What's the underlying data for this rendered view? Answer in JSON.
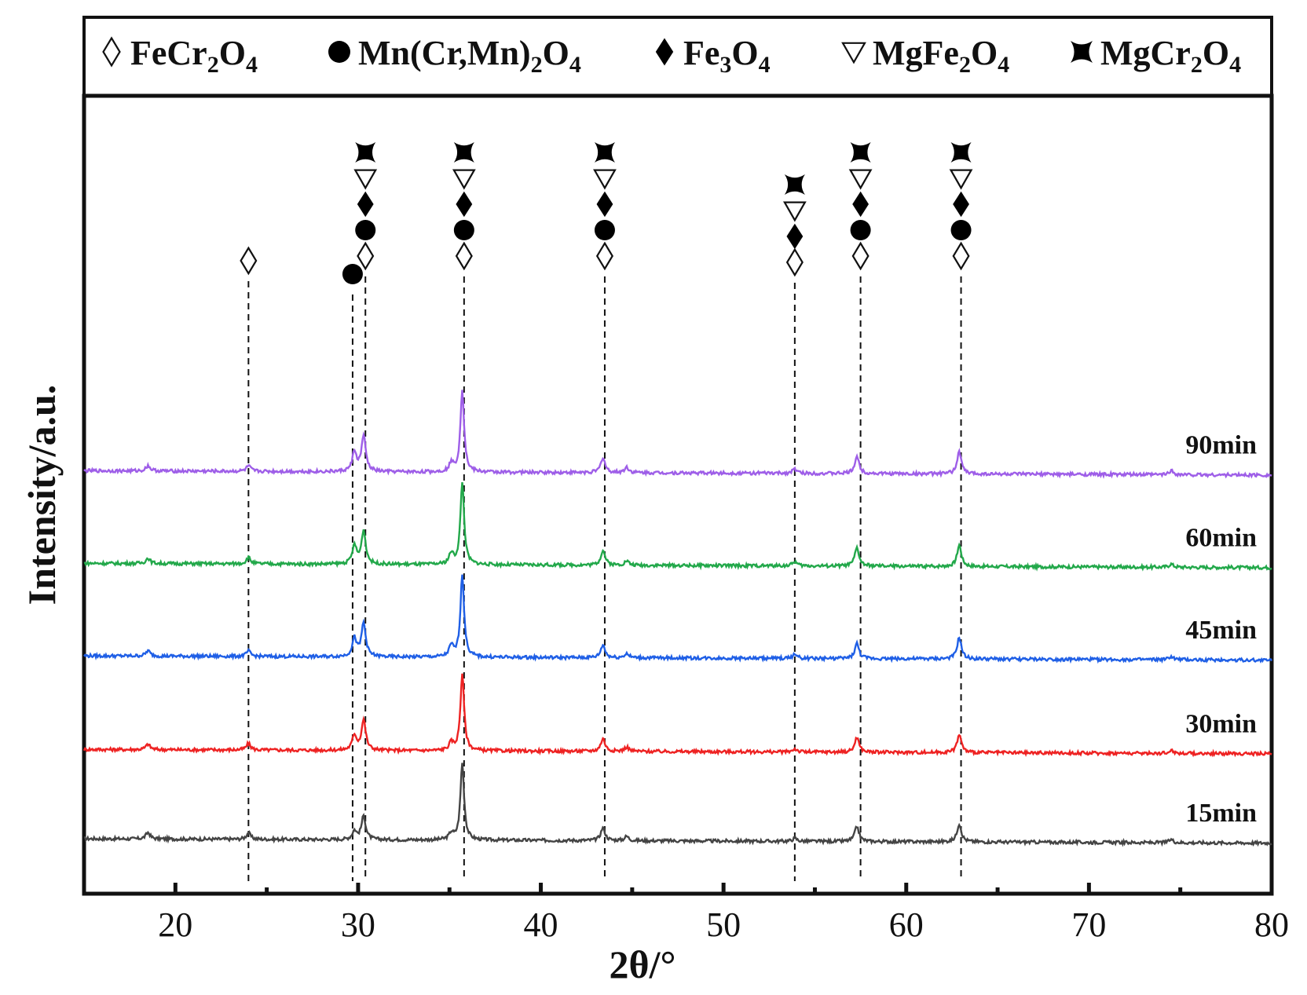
{
  "chart_data": {
    "type": "line",
    "xlabel": "2θ/°",
    "ylabel": "Intensity/a.u.",
    "xlim": [
      15,
      80
    ],
    "xticks": [
      20,
      30,
      40,
      50,
      60,
      70,
      80
    ],
    "minor_xticks": [
      25,
      35,
      45,
      55,
      65,
      75
    ],
    "y_ticks_shown": false,
    "legend_position": "top",
    "legend": [
      {
        "symbol": "◊",
        "name_parts": [
          [
            "FeCr",
            "n"
          ],
          [
            "2",
            "s"
          ],
          [
            "O",
            "n"
          ],
          [
            "4",
            "s"
          ]
        ]
      },
      {
        "symbol": "●",
        "name_parts": [
          [
            "Mn(Cr,Mn)",
            "n"
          ],
          [
            "2",
            "s"
          ],
          [
            "O",
            "n"
          ],
          [
            "4",
            "s"
          ]
        ]
      },
      {
        "symbol": "♦",
        "name_parts": [
          [
            "Fe",
            "n"
          ],
          [
            "3",
            "s"
          ],
          [
            "O",
            "n"
          ],
          [
            "4",
            "s"
          ]
        ]
      },
      {
        "symbol": "∇",
        "name_parts": [
          [
            "MgFe",
            "n"
          ],
          [
            "2",
            "s"
          ],
          [
            "O",
            "n"
          ],
          [
            "4",
            "s"
          ]
        ]
      },
      {
        "symbol": "bowtie",
        "name_parts": [
          [
            "MgCr",
            "n"
          ],
          [
            "2",
            "s"
          ],
          [
            "O",
            "n"
          ],
          [
            "4",
            "s"
          ]
        ]
      }
    ],
    "series": [
      {
        "name": "15min",
        "color": "#444444",
        "baseline": 0.0,
        "slope": -0.04,
        "peaks": [
          [
            18.5,
            0.06
          ],
          [
            24.0,
            0.06
          ],
          [
            29.8,
            0.08
          ],
          [
            30.3,
            0.22
          ],
          [
            35.1,
            0.06
          ],
          [
            35.7,
            0.72
          ],
          [
            43.4,
            0.12
          ],
          [
            44.7,
            0.04
          ],
          [
            53.9,
            0.03
          ],
          [
            57.3,
            0.14
          ],
          [
            62.9,
            0.17
          ],
          [
            74.5,
            0.03
          ]
        ]
      },
      {
        "name": "30min",
        "color": "#ee2222",
        "baseline": 0.83,
        "slope": -0.04,
        "peaks": [
          [
            18.5,
            0.05
          ],
          [
            24.0,
            0.06
          ],
          [
            29.8,
            0.14
          ],
          [
            30.3,
            0.28
          ],
          [
            35.1,
            0.07
          ],
          [
            35.7,
            0.72
          ],
          [
            43.4,
            0.12
          ],
          [
            44.7,
            0.04
          ],
          [
            53.9,
            0.03
          ],
          [
            57.3,
            0.14
          ],
          [
            62.9,
            0.17
          ],
          [
            74.5,
            0.03
          ]
        ]
      },
      {
        "name": "45min",
        "color": "#1f5fe6",
        "baseline": 1.7,
        "slope": -0.04,
        "peaks": [
          [
            18.5,
            0.05
          ],
          [
            24.0,
            0.05
          ],
          [
            29.8,
            0.17
          ],
          [
            30.3,
            0.31
          ],
          [
            35.1,
            0.1
          ],
          [
            35.7,
            0.77
          ],
          [
            43.4,
            0.12
          ],
          [
            44.7,
            0.04
          ],
          [
            53.9,
            0.04
          ],
          [
            57.3,
            0.14
          ],
          [
            62.9,
            0.2
          ],
          [
            74.5,
            0.03
          ]
        ]
      },
      {
        "name": "60min",
        "color": "#22a84a",
        "baseline": 2.56,
        "slope": -0.04,
        "peaks": [
          [
            18.5,
            0.05
          ],
          [
            24.0,
            0.06
          ],
          [
            29.8,
            0.17
          ],
          [
            30.3,
            0.31
          ],
          [
            35.1,
            0.1
          ],
          [
            35.7,
            0.77
          ],
          [
            43.4,
            0.14
          ],
          [
            44.7,
            0.04
          ],
          [
            53.9,
            0.04
          ],
          [
            57.3,
            0.17
          ],
          [
            62.9,
            0.2
          ],
          [
            74.5,
            0.03
          ]
        ]
      },
      {
        "name": "90min",
        "color": "#9e5ee8",
        "baseline": 3.42,
        "slope": -0.04,
        "peaks": [
          [
            18.5,
            0.05
          ],
          [
            24.0,
            0.05
          ],
          [
            29.8,
            0.18
          ],
          [
            30.3,
            0.33
          ],
          [
            35.1,
            0.08
          ],
          [
            35.7,
            0.77
          ],
          [
            43.4,
            0.14
          ],
          [
            44.7,
            0.05
          ],
          [
            53.9,
            0.04
          ],
          [
            57.3,
            0.16
          ],
          [
            62.9,
            0.21
          ],
          [
            74.5,
            0.04
          ]
        ]
      }
    ],
    "reference_lines": [
      {
        "x": 24.0,
        "markers": [
          "◊"
        ]
      },
      {
        "x": 29.7,
        "markers": [
          "●"
        ]
      },
      {
        "x": 30.4,
        "markers": [
          "◊",
          "●",
          "♦",
          "∇",
          "bowtie"
        ]
      },
      {
        "x": 35.8,
        "markers": [
          "◊",
          "●",
          "♦",
          "∇",
          "bowtie"
        ]
      },
      {
        "x": 43.5,
        "markers": [
          "◊",
          "●",
          "♦",
          "∇",
          "bowtie"
        ]
      },
      {
        "x": 53.9,
        "markers": [
          "◊",
          "♦",
          "∇",
          "bowtie"
        ]
      },
      {
        "x": 57.5,
        "markers": [
          "◊",
          "●",
          "♦",
          "∇",
          "bowtie"
        ]
      },
      {
        "x": 63.0,
        "markers": [
          "◊",
          "●",
          "♦",
          "∇",
          "bowtie"
        ]
      }
    ]
  }
}
